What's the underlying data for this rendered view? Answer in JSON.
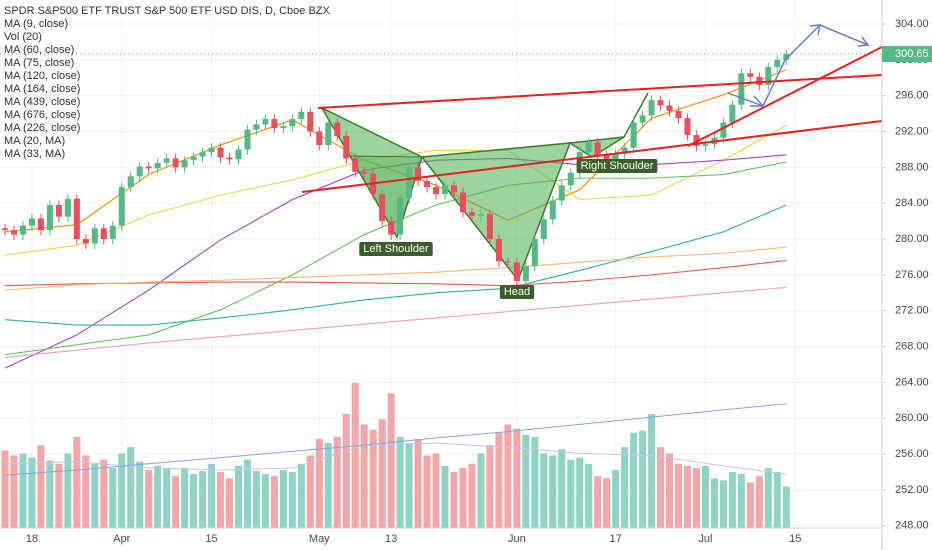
{
  "chart_data": {
    "type": "candlestick",
    "title": "SPDR S&P500 ETF TRUST S&P 500 ETF USD DIS, D, Cboe BZX",
    "categories": [
      null,
      null,
      null,
      "18",
      null,
      null,
      null,
      null,
      null,
      null,
      null,
      null,
      null,
      "Apr",
      null,
      null,
      null,
      null,
      null,
      null,
      null,
      null,
      null,
      "15",
      null,
      null,
      null,
      null,
      null,
      null,
      null,
      null,
      null,
      null,
      null,
      "May",
      null,
      null,
      null,
      null,
      null,
      null,
      null,
      "13",
      null,
      null,
      null,
      null,
      null,
      null,
      null,
      null,
      null,
      null,
      null,
      null,
      null,
      "Jun",
      null,
      null,
      null,
      null,
      null,
      null,
      null,
      null,
      null,
      null,
      "17",
      null,
      null,
      null,
      null,
      null,
      null,
      null,
      null,
      null,
      "Jul",
      null,
      null,
      null,
      null,
      null,
      null,
      null,
      null,
      null,
      "15",
      null,
      null,
      null,
      null,
      null,
      null,
      null,
      null,
      null
    ],
    "open": [
      281.2,
      281.0,
      280.5,
      281.5,
      282.3,
      281.0,
      283.8,
      282.5,
      284.5,
      280.0,
      279.5,
      281.2,
      280.0,
      281.5,
      285.8,
      287.0,
      288.1,
      287.9,
      288.5,
      289.0,
      288.0,
      288.8,
      289.2,
      289.7,
      290.2,
      289.1,
      288.9,
      290.0,
      292.2,
      292.8,
      293.4,
      292.4,
      292.6,
      293.4,
      294.2,
      292.0,
      290.5,
      293.0,
      291.5,
      289.0,
      287.5,
      287.3,
      285.0,
      282.0,
      280.5,
      284.6,
      288.0,
      286.5,
      285.8,
      285.0,
      286.0,
      285.2,
      283.0,
      282.6,
      282.8,
      280.0,
      277.5,
      277.4,
      275.3,
      277.0,
      280.0,
      282.2,
      284.3,
      286.0,
      287.4,
      289.7,
      290.8,
      289.4,
      288.9,
      289.5,
      290.2,
      293.0,
      293.8,
      295.5,
      294.9,
      294.3,
      293.5,
      291.6,
      290.4,
      290.6,
      291.3,
      293.0,
      295.0,
      298.5,
      298.1,
      297.2,
      299.2,
      300.0,
      null,
      null,
      null,
      null,
      null,
      null,
      null,
      null,
      null,
      null
    ],
    "high": [
      281.7,
      281.5,
      282.0,
      282.8,
      282.8,
      284.3,
      284.3,
      285.0,
      285.0,
      280.5,
      281.7,
      281.7,
      282.0,
      286.3,
      287.5,
      288.6,
      288.6,
      289.0,
      289.5,
      289.5,
      289.3,
      289.7,
      290.2,
      290.7,
      290.7,
      289.6,
      290.5,
      292.7,
      293.3,
      293.9,
      293.9,
      293.1,
      293.9,
      294.7,
      294.7,
      292.5,
      293.5,
      293.5,
      292.0,
      289.5,
      288.0,
      287.8,
      285.5,
      282.5,
      285.1,
      288.5,
      288.5,
      287.0,
      286.3,
      286.5,
      286.5,
      285.7,
      283.5,
      283.3,
      283.3,
      280.5,
      278.0,
      277.9,
      277.5,
      280.5,
      282.7,
      284.8,
      286.5,
      287.9,
      290.2,
      291.3,
      291.3,
      289.9,
      290.0,
      290.7,
      293.5,
      294.3,
      296.0,
      296.0,
      295.4,
      294.8,
      294.0,
      292.1,
      291.1,
      291.8,
      293.5,
      295.5,
      299.0,
      299.0,
      298.6,
      299.7,
      300.5,
      301.15,
      null,
      null,
      null,
      null,
      null,
      null,
      null,
      null,
      null,
      null
    ],
    "low": [
      280.4,
      279.9,
      279.9,
      280.9,
      280.4,
      280.4,
      281.9,
      281.9,
      279.4,
      278.9,
      278.9,
      279.4,
      279.4,
      280.9,
      285.2,
      286.4,
      287.3,
      287.3,
      287.9,
      287.4,
      287.4,
      288.2,
      288.6,
      289.1,
      288.5,
      288.3,
      288.3,
      289.4,
      291.6,
      292.2,
      291.8,
      291.8,
      292.0,
      292.8,
      291.4,
      289.9,
      289.9,
      290.9,
      288.4,
      286.9,
      286.7,
      284.4,
      281.4,
      279.9,
      279.9,
      284.0,
      285.9,
      285.2,
      284.4,
      284.4,
      284.6,
      282.4,
      282.0,
      282.0,
      279.4,
      276.9,
      276.8,
      274.7,
      274.7,
      276.4,
      279.4,
      281.6,
      283.7,
      285.4,
      286.8,
      289.1,
      288.8,
      288.3,
      288.3,
      288.9,
      289.6,
      292.4,
      293.2,
      294.3,
      293.7,
      292.9,
      291.0,
      289.8,
      289.8,
      290.0,
      290.7,
      292.4,
      294.4,
      297.5,
      296.6,
      296.6,
      298.6,
      299.4,
      null,
      null,
      null,
      null,
      null,
      null,
      null,
      null,
      null,
      null
    ],
    "close": [
      281.0,
      280.5,
      281.5,
      282.3,
      281.0,
      283.8,
      282.5,
      284.5,
      280.0,
      279.5,
      281.2,
      280.0,
      281.5,
      285.8,
      287.0,
      288.1,
      287.9,
      288.5,
      289.0,
      288.0,
      288.8,
      289.2,
      289.7,
      290.2,
      289.1,
      288.9,
      290.0,
      292.2,
      292.8,
      293.4,
      292.4,
      292.6,
      293.4,
      294.2,
      292.0,
      290.5,
      293.0,
      291.5,
      289.0,
      287.5,
      287.3,
      285.0,
      282.0,
      280.5,
      284.6,
      288.0,
      286.5,
      285.8,
      285.0,
      286.0,
      285.2,
      283.0,
      282.6,
      282.8,
      280.0,
      277.5,
      277.4,
      275.3,
      277.0,
      280.0,
      282.2,
      284.3,
      286.0,
      287.4,
      289.7,
      290.8,
      289.4,
      288.9,
      289.5,
      290.2,
      293.0,
      293.8,
      295.5,
      294.9,
      294.3,
      293.5,
      291.6,
      290.4,
      290.6,
      291.3,
      293.0,
      295.0,
      298.5,
      298.1,
      297.2,
      299.2,
      300.0,
      300.65,
      null,
      null,
      null,
      null,
      null,
      null,
      null,
      null,
      null,
      null
    ],
    "up_color": "#53b987",
    "down_color": "#eb4d5c",
    "last_price_color": "#53b987",
    "ylim": [
      247.75,
      306.68
    ],
    "yticks": [
      {
        "value": 248,
        "label": "248.00"
      },
      {
        "value": 252,
        "label": "252.00"
      },
      {
        "value": 256,
        "label": "256.00"
      },
      {
        "value": 260,
        "label": "260.00"
      },
      {
        "value": 264,
        "label": "264.00"
      },
      {
        "value": 268,
        "label": "268.00"
      },
      {
        "value": 272,
        "label": "272.00"
      },
      {
        "value": 276,
        "label": "276.00"
      },
      {
        "value": 280,
        "label": "280.00"
      },
      {
        "value": 284,
        "label": "284.00"
      },
      {
        "value": 288,
        "label": "288.00"
      },
      {
        "value": 292,
        "label": "292.00"
      },
      {
        "value": 296,
        "label": "296.00"
      },
      {
        "value": 300,
        "label": "300.00"
      },
      {
        "value": 304,
        "label": "304.00"
      }
    ],
    "grid": true,
    "volume": {
      "name": "Vol (20)",
      "up_color": "#8fd3c4",
      "down_color": "#f3a5a8",
      "values": [
        75,
        70,
        72,
        68,
        80,
        65,
        62,
        72,
        88,
        70,
        62,
        66,
        58,
        72,
        78,
        64,
        56,
        60,
        58,
        50,
        58,
        52,
        55,
        62,
        54,
        48,
        60,
        66,
        55,
        52,
        50,
        56,
        54,
        62,
        70,
        86,
        82,
        88,
        110,
        140,
        100,
        95,
        105,
        130,
        88,
        82,
        86,
        70,
        72,
        60,
        54,
        58,
        62,
        72,
        80,
        92,
        100,
        96,
        90,
        88,
        72,
        70,
        76,
        66,
        68,
        62,
        50,
        48,
        56,
        78,
        92,
        94,
        110,
        78,
        72,
        62,
        60,
        58,
        60,
        48,
        46,
        54,
        52,
        44,
        50,
        58,
        54,
        40,
        null,
        null,
        null,
        null,
        null,
        null,
        null,
        null,
        null,
        null
      ]
    },
    "ma_x": [
      0,
      8,
      16,
      24,
      32,
      40,
      48,
      56,
      64,
      72,
      80,
      87
    ],
    "ma_series": [
      {
        "name": "MA (9, close)",
        "color": "#f39c12",
        "values": [
          280.8,
          281.6,
          287.2,
          290.5,
          293.3,
          288.8,
          286.0,
          282.1,
          285.5,
          293.5,
          296.1,
          298.9
        ]
      },
      {
        "name": "MA (60, close)",
        "color": "#f5d04e",
        "values": [
          278.2,
          279.3,
          282.7,
          284.9,
          286.6,
          288.8,
          289.9,
          289.9,
          284.4,
          284.9,
          288.8,
          292.7
        ]
      },
      {
        "name": "MA (75, close)",
        "color": "#a046d2",
        "values": [
          265.6,
          269.3,
          274.3,
          279.9,
          284.4,
          287.7,
          288.8,
          289.0,
          288.3,
          288.3,
          288.8,
          289.4
        ]
      },
      {
        "name": "MA (120, close)",
        "color": "#6abf5e",
        "values": [
          267.1,
          268.2,
          269.3,
          272.1,
          276.0,
          280.5,
          283.8,
          286.0,
          286.8,
          286.8,
          287.2,
          288.6
        ]
      },
      {
        "name": "MA (164, close)",
        "color": "#2bb3a3",
        "values": [
          271.0,
          270.4,
          270.4,
          271.2,
          272.1,
          273.2,
          274.0,
          274.5,
          276.5,
          278.6,
          280.8,
          283.8
        ]
      },
      {
        "name": "MA (439, close)",
        "color": "#e85a50",
        "values": [
          274.8,
          275.0,
          275.1,
          275.2,
          275.2,
          275.1,
          275.0,
          274.8,
          275.3,
          276.0,
          276.8,
          277.6
        ]
      },
      {
        "name": "MA (676, close)",
        "color": "#f39bc0",
        "values": [
          266.8,
          267.6,
          268.4,
          269.1,
          269.8,
          270.5,
          271.2,
          271.9,
          272.6,
          273.3,
          274.0,
          274.6
        ]
      },
      {
        "name": "MA (226, close)",
        "color": "#f5b971",
        "values": [
          274.3,
          274.9,
          275.2,
          275.4,
          275.7,
          276.0,
          276.3,
          276.8,
          277.4,
          278.0,
          278.4,
          279.1
        ]
      }
    ],
    "volume_ma_series": [
      {
        "name": "MA (20, MA)",
        "color": "#c9c3f0",
        "values": [
          62,
          64,
          58,
          56,
          58,
          80,
          82,
          78,
          72,
          70,
          60,
          52
        ]
      },
      {
        "name": "MA (33, MA)",
        "color": "#7fa8e0",
        "values": [
          51,
          56,
          62,
          68,
          74,
          80,
          87,
          93,
          100,
          107,
          114,
          120
        ]
      }
    ],
    "patterns": [
      "Left Shoulder",
      "Head",
      "Right Shoulder"
    ]
  }
}
